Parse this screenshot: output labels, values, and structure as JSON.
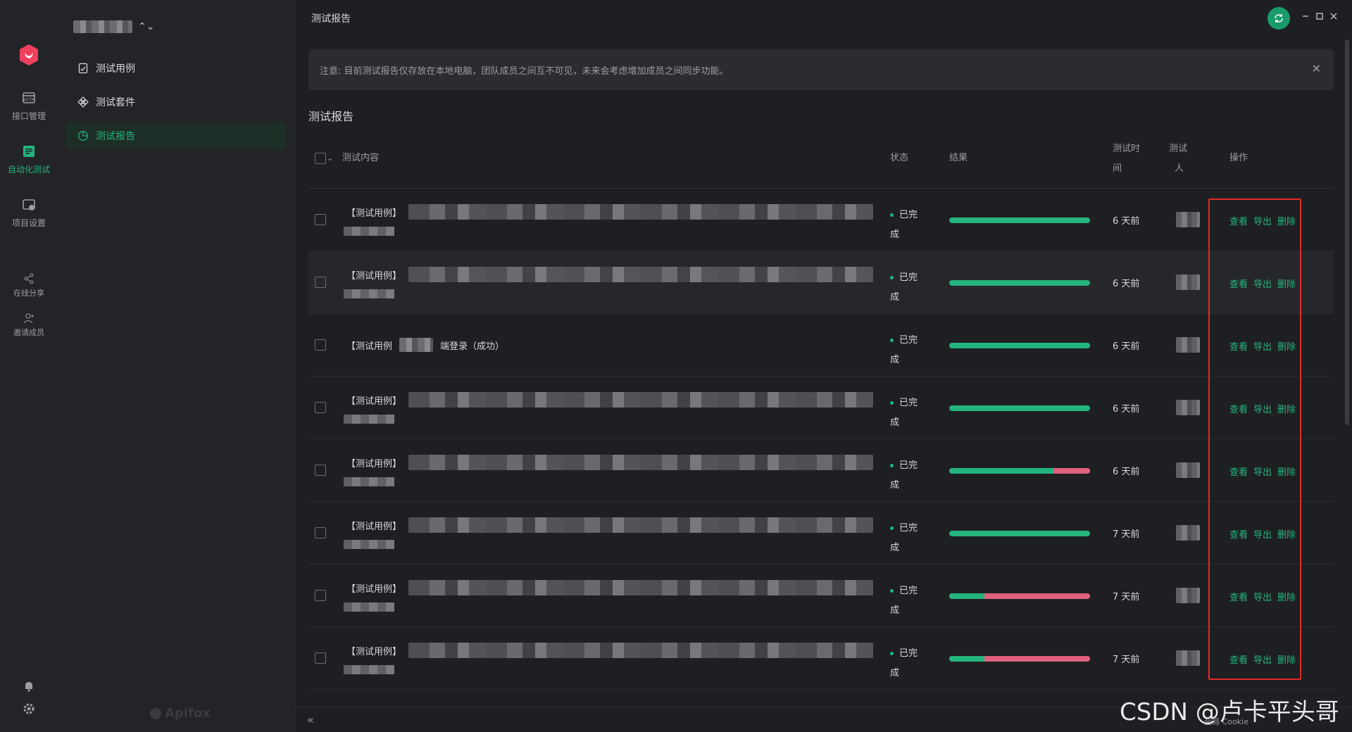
{
  "rail": {
    "items": [
      {
        "label": "接口管理",
        "icon": "api-icon"
      },
      {
        "label": "自动化测试",
        "icon": "automation-icon"
      },
      {
        "label": "项目设置",
        "icon": "settings-icon"
      },
      {
        "label": "在线分享",
        "icon": "share-icon"
      },
      {
        "label": "邀请成员",
        "icon": "invite-icon"
      }
    ]
  },
  "sidebar": {
    "project_chevron": "⌃⌄",
    "items": [
      {
        "label": "测试用例",
        "icon": "testcase-icon"
      },
      {
        "label": "测试套件",
        "icon": "suite-icon"
      },
      {
        "label": "测试报告",
        "icon": "report-icon",
        "active": true
      }
    ],
    "brand": "Apifox"
  },
  "header": {
    "title": "测试报告"
  },
  "notice": {
    "text": "注意: 目前测试报告仅存放在本地电脑，团队成员之间互不可见，未来会考虑增加成员之间同步功能。",
    "close": "✕"
  },
  "section": {
    "title": "测试报告"
  },
  "table": {
    "headers": {
      "content": "测试内容",
      "status": "状态",
      "result": "结果",
      "time_line1": "测试时",
      "time_line2": "间",
      "tester_line1": "测试",
      "tester_line2": "人",
      "ops": "操作"
    },
    "rows": [
      {
        "case": "【测试用例】",
        "status1": "已完",
        "status2": "成",
        "pass": 1.0,
        "time": "6 天前"
      },
      {
        "case": "【测试用例】",
        "status1": "已完",
        "status2": "成",
        "pass": 1.0,
        "time": "6 天前"
      },
      {
        "case": "【测试用例",
        "suffix": "端登录（成功）",
        "status1": "已完",
        "status2": "成",
        "pass": 1.0,
        "time": "6 天前"
      },
      {
        "case": "【测试用例】",
        "status1": "已完",
        "status2": "成",
        "pass": 1.0,
        "time": "6 天前"
      },
      {
        "case": "【测试用例】",
        "status1": "已完",
        "status2": "成",
        "pass": 0.74,
        "time": "6 天前"
      },
      {
        "case": "【测试用例】",
        "status1": "已完",
        "status2": "成",
        "pass": 1.0,
        "time": "7 天前"
      },
      {
        "case": "【测试用例】",
        "status1": "已完",
        "status2": "成",
        "pass": 0.25,
        "time": "7 天前"
      },
      {
        "case": "【测试用例】",
        "status1": "已完",
        "status2": "成",
        "pass": 0.25,
        "time": "7 天前"
      }
    ],
    "ops": {
      "view": "查看",
      "export": "导出",
      "delete": "删除"
    }
  },
  "footer": {
    "collapse": "«",
    "cookie": "全局 Cookie"
  },
  "watermark": "CSDN @卢卡平头哥",
  "colors": {
    "accent": "#24b47e",
    "fail": "#e0607e",
    "highlight_box": "#e02a2a"
  }
}
